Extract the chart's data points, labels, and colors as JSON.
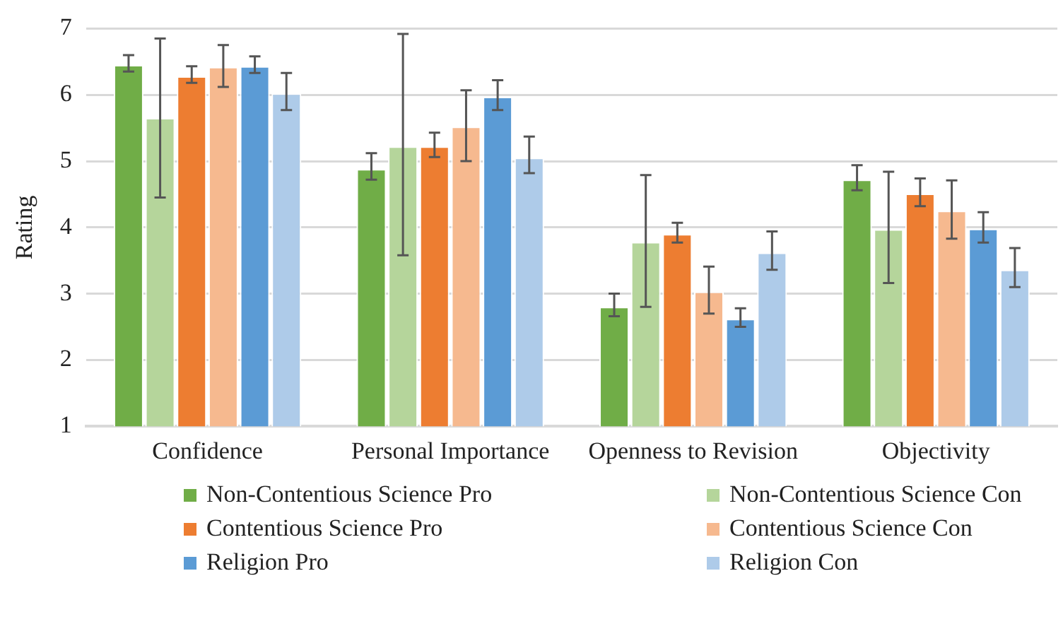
{
  "chart_data": {
    "type": "bar",
    "ylabel": "Rating",
    "categories": [
      "Confidence",
      "Personal Importance",
      "Openness to Revision",
      "Objectivity"
    ],
    "ylim": [
      1,
      7
    ],
    "yticks": [
      1,
      2,
      3,
      4,
      5,
      6,
      7
    ],
    "grid": "y",
    "legend": "bottom",
    "series": [
      {
        "name": "Non-Contentious Science Pro",
        "color": "#70ad47",
        "values": [
          6.45,
          4.88,
          2.8,
          4.72
        ],
        "errors": [
          [
            6.35,
            6.6
          ],
          [
            4.72,
            5.12
          ],
          [
            2.66,
            3.0
          ],
          [
            4.56,
            4.94
          ]
        ]
      },
      {
        "name": "Non-Contentious Science Con",
        "color": "#b5d59b",
        "values": [
          5.65,
          5.22,
          3.78,
          3.97
        ],
        "errors": [
          [
            4.45,
            6.85
          ],
          [
            3.58,
            6.92
          ],
          [
            2.8,
            4.79
          ],
          [
            3.16,
            4.84
          ]
        ]
      },
      {
        "name": "Contentious Science Pro",
        "color": "#ed7d31",
        "values": [
          6.28,
          5.22,
          3.9,
          4.51
        ],
        "errors": [
          [
            6.18,
            6.43
          ],
          [
            5.06,
            5.43
          ],
          [
            3.77,
            4.07
          ],
          [
            4.32,
            4.74
          ]
        ]
      },
      {
        "name": "Contentious Science Con",
        "color": "#f6b98f",
        "values": [
          6.42,
          5.52,
          3.03,
          4.25
        ],
        "errors": [
          [
            6.12,
            6.75
          ],
          [
            5.0,
            6.07
          ],
          [
            2.7,
            3.41
          ],
          [
            3.83,
            4.71
          ]
        ]
      },
      {
        "name": "Religion Pro",
        "color": "#5b9bd5",
        "values": [
          6.43,
          5.97,
          2.62,
          3.98
        ],
        "errors": [
          [
            6.33,
            6.58
          ],
          [
            5.77,
            6.22
          ],
          [
            2.5,
            2.78
          ],
          [
            3.77,
            4.23
          ]
        ]
      },
      {
        "name": "Religion Con",
        "color": "#aecbe9",
        "values": [
          6.02,
          5.05,
          3.62,
          3.36
        ],
        "errors": [
          [
            5.77,
            6.33
          ],
          [
            4.82,
            5.37
          ],
          [
            3.36,
            3.94
          ],
          [
            3.1,
            3.69
          ]
        ]
      }
    ]
  }
}
